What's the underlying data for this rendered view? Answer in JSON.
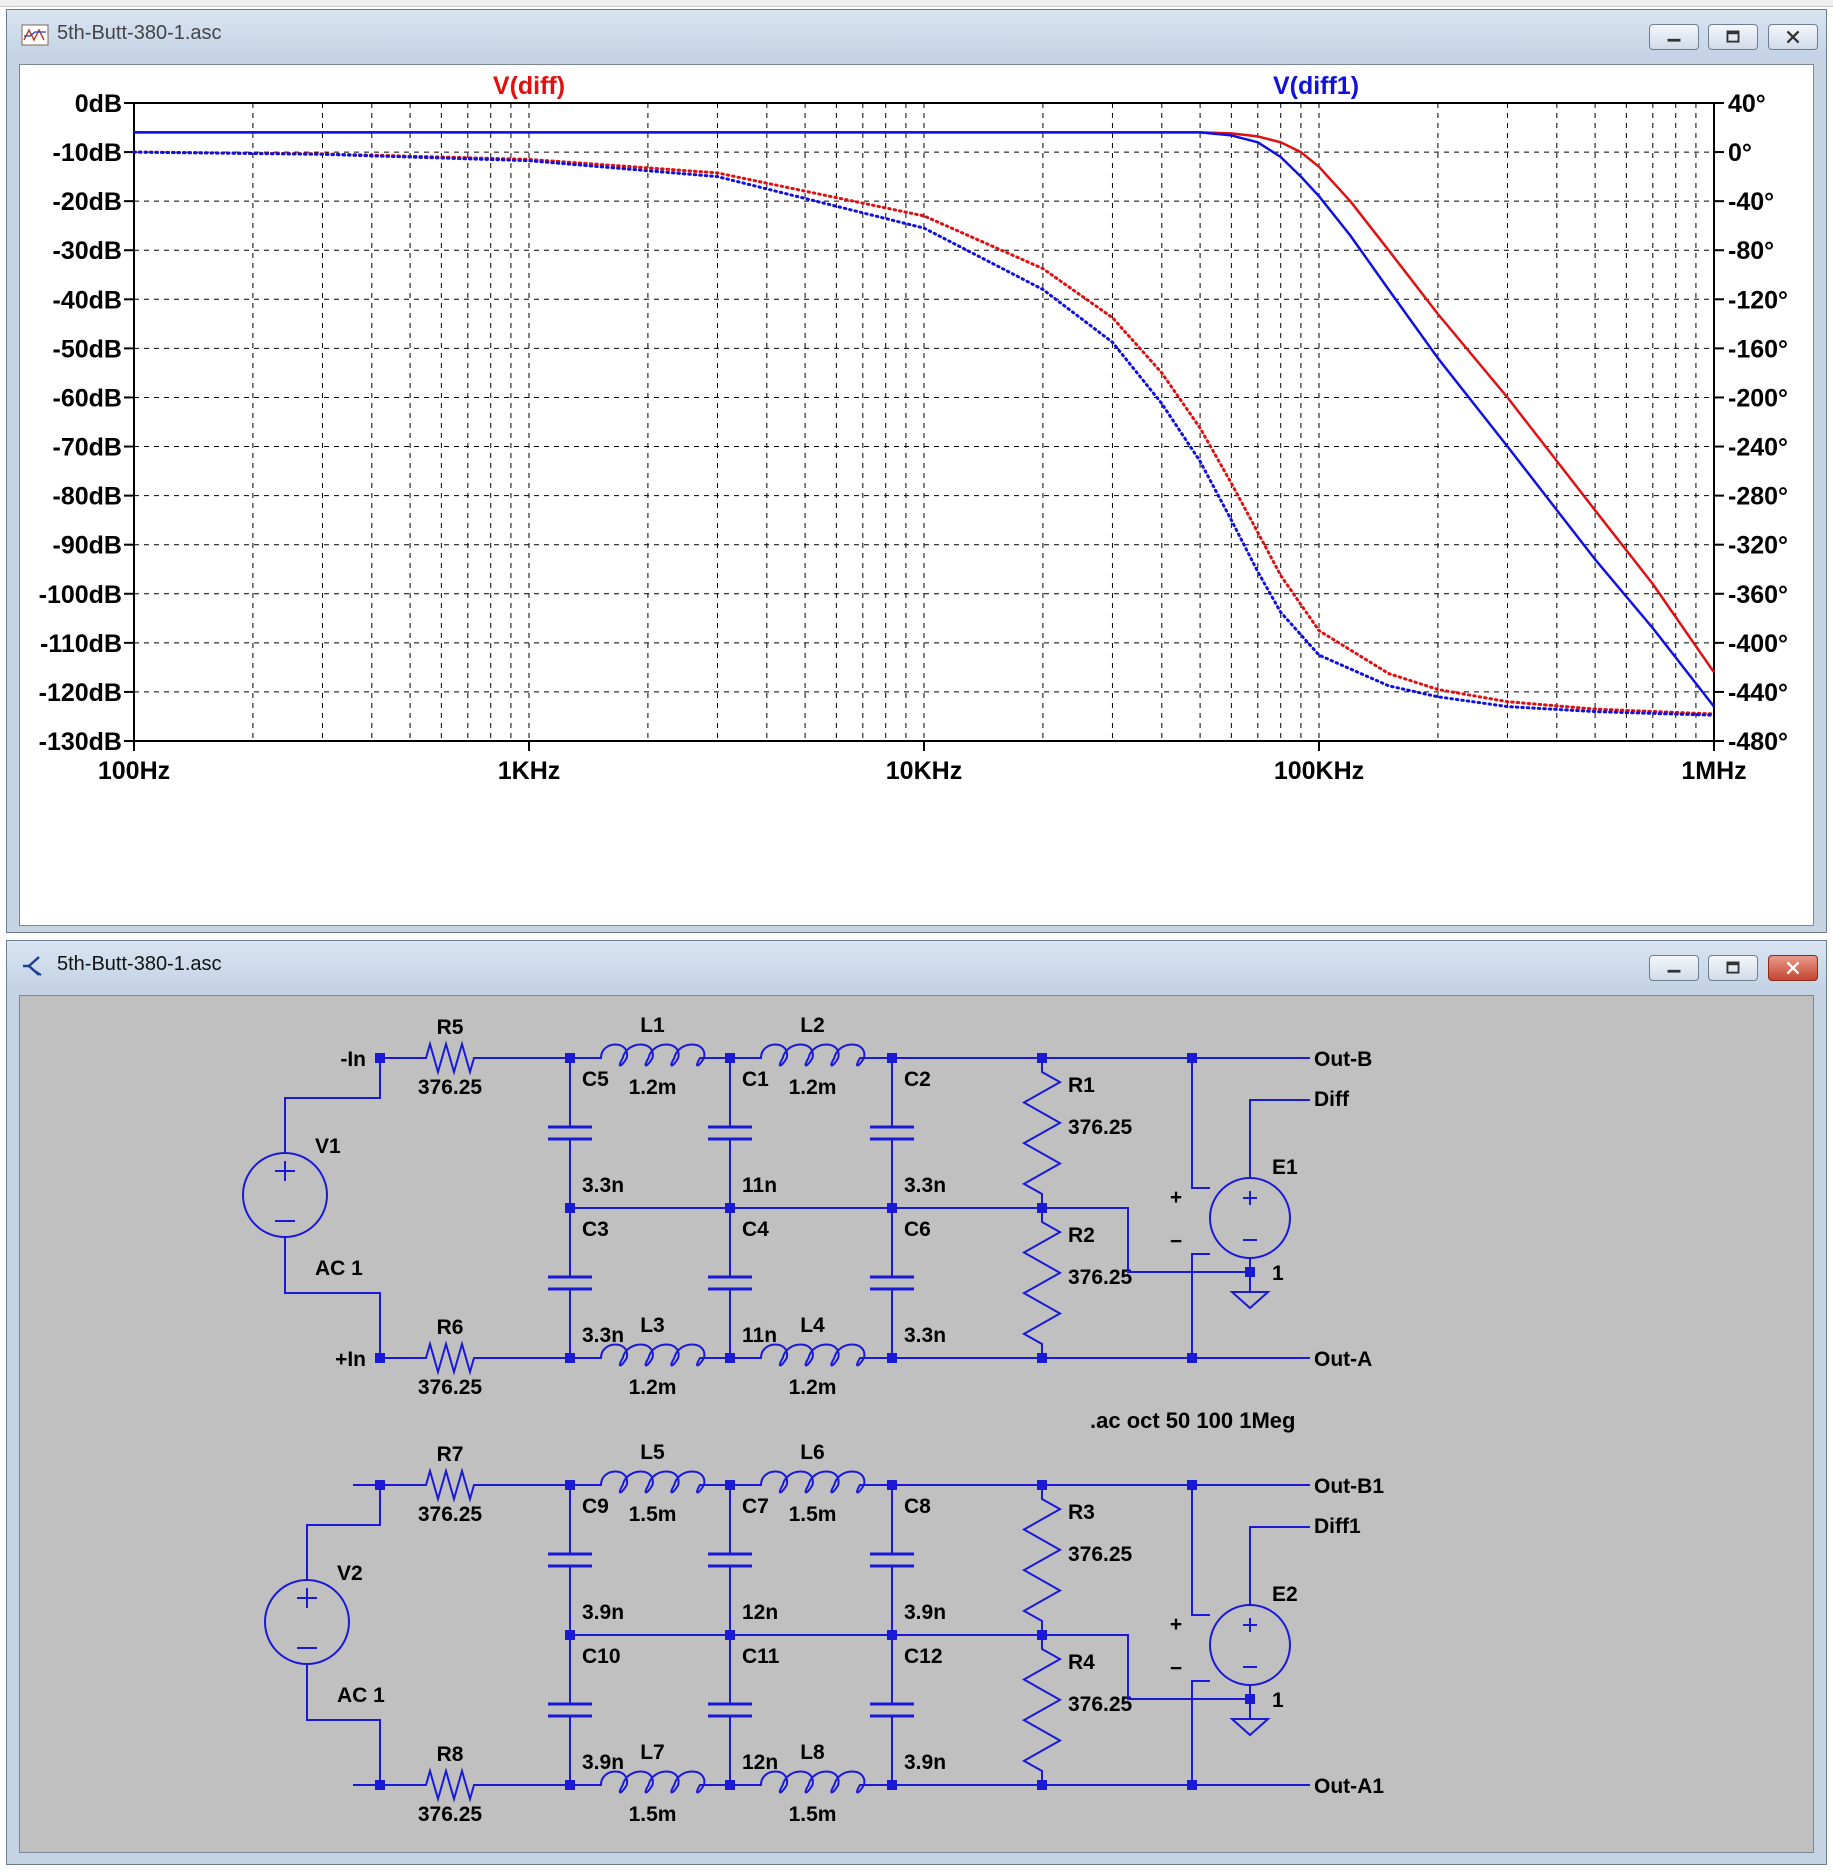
{
  "plot_window": {
    "title": "5th-Butt-380-1.asc",
    "trace_labels": [
      {
        "label": "V(diff)",
        "color": "#e01010"
      },
      {
        "label": "V(diff1)",
        "color": "#1010e0"
      }
    ],
    "left_ticks": [
      "0dB",
      "-10dB",
      "-20dB",
      "-30dB",
      "-40dB",
      "-50dB",
      "-60dB",
      "-70dB",
      "-80dB",
      "-90dB",
      "-100dB",
      "-110dB",
      "-120dB",
      "-130dB"
    ],
    "right_ticks": [
      "40°",
      "0°",
      "-40°",
      "-80°",
      "-120°",
      "-160°",
      "-200°",
      "-240°",
      "-280°",
      "-320°",
      "-360°",
      "-400°",
      "-440°",
      "-480°"
    ],
    "x_ticks": [
      "100Hz",
      "1KHz",
      "10KHz",
      "100KHz",
      "1MHz"
    ]
  },
  "chart_data": {
    "type": "line",
    "x_scale": "log",
    "xlim": [
      100,
      1000000
    ],
    "ylim_mag": [
      -130,
      0
    ],
    "ylim_phase": [
      -480,
      40
    ],
    "grid": true,
    "series": [
      {
        "name": "V(diff)",
        "kind": "magnitude",
        "color": "#e01010",
        "x": [
          100,
          1000,
          10000,
          40000,
          50000,
          60000,
          70000,
          80000,
          90000,
          100000,
          120000,
          150000,
          200000,
          300000,
          500000,
          700000,
          1000000
        ],
        "y": [
          -6,
          -6,
          -6,
          -6,
          -6,
          -6.2,
          -6.8,
          -8,
          -10,
          -13,
          -20,
          -30,
          -43,
          -60,
          -83,
          -98,
          -116
        ]
      },
      {
        "name": "V(diff1)",
        "kind": "magnitude",
        "color": "#1010e0",
        "x": [
          100,
          1000,
          10000,
          40000,
          50000,
          60000,
          70000,
          80000,
          90000,
          100000,
          120000,
          150000,
          200000,
          300000,
          500000,
          700000,
          1000000
        ],
        "y": [
          -6,
          -6,
          -6,
          -6,
          -6,
          -6.6,
          -8,
          -11,
          -15,
          -19,
          -27,
          -38,
          -52,
          -70,
          -93,
          -107,
          -123
        ]
      },
      {
        "name": "V(diff)",
        "kind": "phase",
        "color": "#e01010",
        "x": [
          100,
          300,
          1000,
          3000,
          10000,
          20000,
          30000,
          40000,
          50000,
          60000,
          70000,
          80000,
          100000,
          150000,
          200000,
          300000,
          500000,
          1000000
        ],
        "y": [
          0,
          -1.5,
          -6,
          -17,
          -52,
          -95,
          -135,
          -180,
          -225,
          -270,
          -310,
          -345,
          -390,
          -425,
          -438,
          -448,
          -454,
          -458
        ]
      },
      {
        "name": "V(diff1)",
        "kind": "phase",
        "color": "#1010e0",
        "x": [
          100,
          300,
          1000,
          3000,
          10000,
          20000,
          30000,
          40000,
          50000,
          60000,
          70000,
          80000,
          100000,
          150000,
          200000,
          300000,
          500000,
          1000000
        ],
        "y": [
          0,
          -1.8,
          -7,
          -20,
          -62,
          -112,
          -155,
          -205,
          -252,
          -300,
          -342,
          -375,
          -410,
          -435,
          -444,
          -452,
          -456,
          -459
        ]
      }
    ]
  },
  "schematic_window": {
    "title": "5th-Butt-380-1.asc",
    "directive": ".ac oct 50 100 1Meg",
    "upper": {
      "net_minus_in": "-In",
      "net_plus_in": "+In",
      "source_name": "V1",
      "source_value": "AC 1",
      "r_top": {
        "name": "R5",
        "value": "376.25"
      },
      "r_bottom": {
        "name": "R6",
        "value": "376.25"
      },
      "l_top1": {
        "name": "L1",
        "value": "1.2m"
      },
      "l_top2": {
        "name": "L2",
        "value": "1.2m"
      },
      "l_bot1": {
        "name": "L3",
        "value": "1.2m"
      },
      "l_bot2": {
        "name": "L4",
        "value": "1.2m"
      },
      "c_up1": {
        "name": "C5",
        "value": "3.3n"
      },
      "c_up2": {
        "name": "C1",
        "value": "11n"
      },
      "c_up3": {
        "name": "C2",
        "value": "3.3n"
      },
      "c_dn1": {
        "name": "C3",
        "value": "3.3n"
      },
      "c_dn2": {
        "name": "C4",
        "value": "11n"
      },
      "c_dn3": {
        "name": "C6",
        "value": "3.3n"
      },
      "r_load1": {
        "name": "R1",
        "value": "376.25"
      },
      "r_load2": {
        "name": "R2",
        "value": "376.25"
      },
      "e_name": "E1",
      "e_gain": "1",
      "out_b": "Out-B",
      "out_a": "Out-A",
      "diff": "Diff"
    },
    "lower": {
      "source_name": "V2",
      "source_value": "AC 1",
      "r_top": {
        "name": "R7",
        "value": "376.25"
      },
      "r_bottom": {
        "name": "R8",
        "value": "376.25"
      },
      "l_top1": {
        "name": "L5",
        "value": "1.5m"
      },
      "l_top2": {
        "name": "L6",
        "value": "1.5m"
      },
      "l_bot1": {
        "name": "L7",
        "value": "1.5m"
      },
      "l_bot2": {
        "name": "L8",
        "value": "1.5m"
      },
      "c_up1": {
        "name": "C9",
        "value": "3.9n"
      },
      "c_up2": {
        "name": "C7",
        "value": "12n"
      },
      "c_up3": {
        "name": "C8",
        "value": "3.9n"
      },
      "c_dn1": {
        "name": "C10",
        "value": "3.9n"
      },
      "c_dn2": {
        "name": "C11",
        "value": "12n"
      },
      "c_dn3": {
        "name": "C12",
        "value": "3.9n"
      },
      "r_load1": {
        "name": "R3",
        "value": "376.25"
      },
      "r_load2": {
        "name": "R4",
        "value": "376.25"
      },
      "e_name": "E2",
      "e_gain": "1",
      "out_b": "Out-B1",
      "out_a": "Out-A1",
      "diff": "Diff1"
    }
  }
}
